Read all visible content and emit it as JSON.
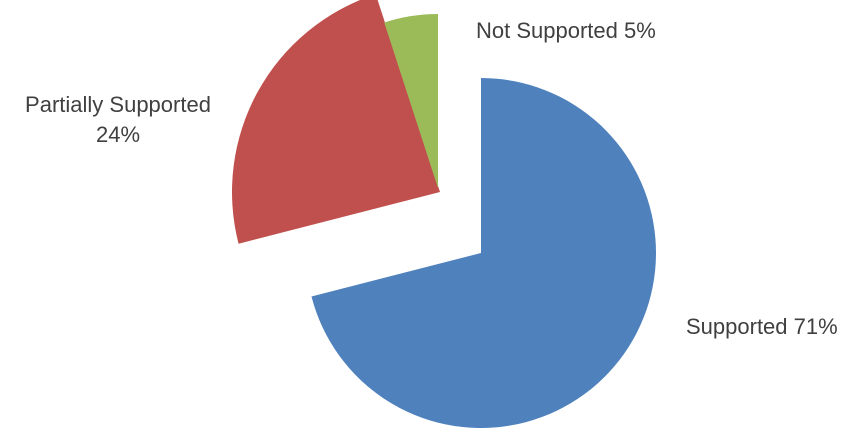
{
  "chart_data": {
    "type": "pie",
    "title": "",
    "exploded": true,
    "legend": "none",
    "slices": [
      {
        "label": "Supported",
        "value": 71,
        "value_label": "71%",
        "color": "#4F81BD"
      },
      {
        "label": "Partially Supported",
        "value": 24,
        "value_label": "24%",
        "color": "#C0504D"
      },
      {
        "label": "Not Supported",
        "value": 5,
        "value_label": "5%",
        "color": "#9BBB59"
      }
    ]
  },
  "labels": {
    "supported": "Supported 71%",
    "partially_line1": "Partially Supported",
    "partially_line2": "24%",
    "not_supported": "Not Supported 5%"
  }
}
